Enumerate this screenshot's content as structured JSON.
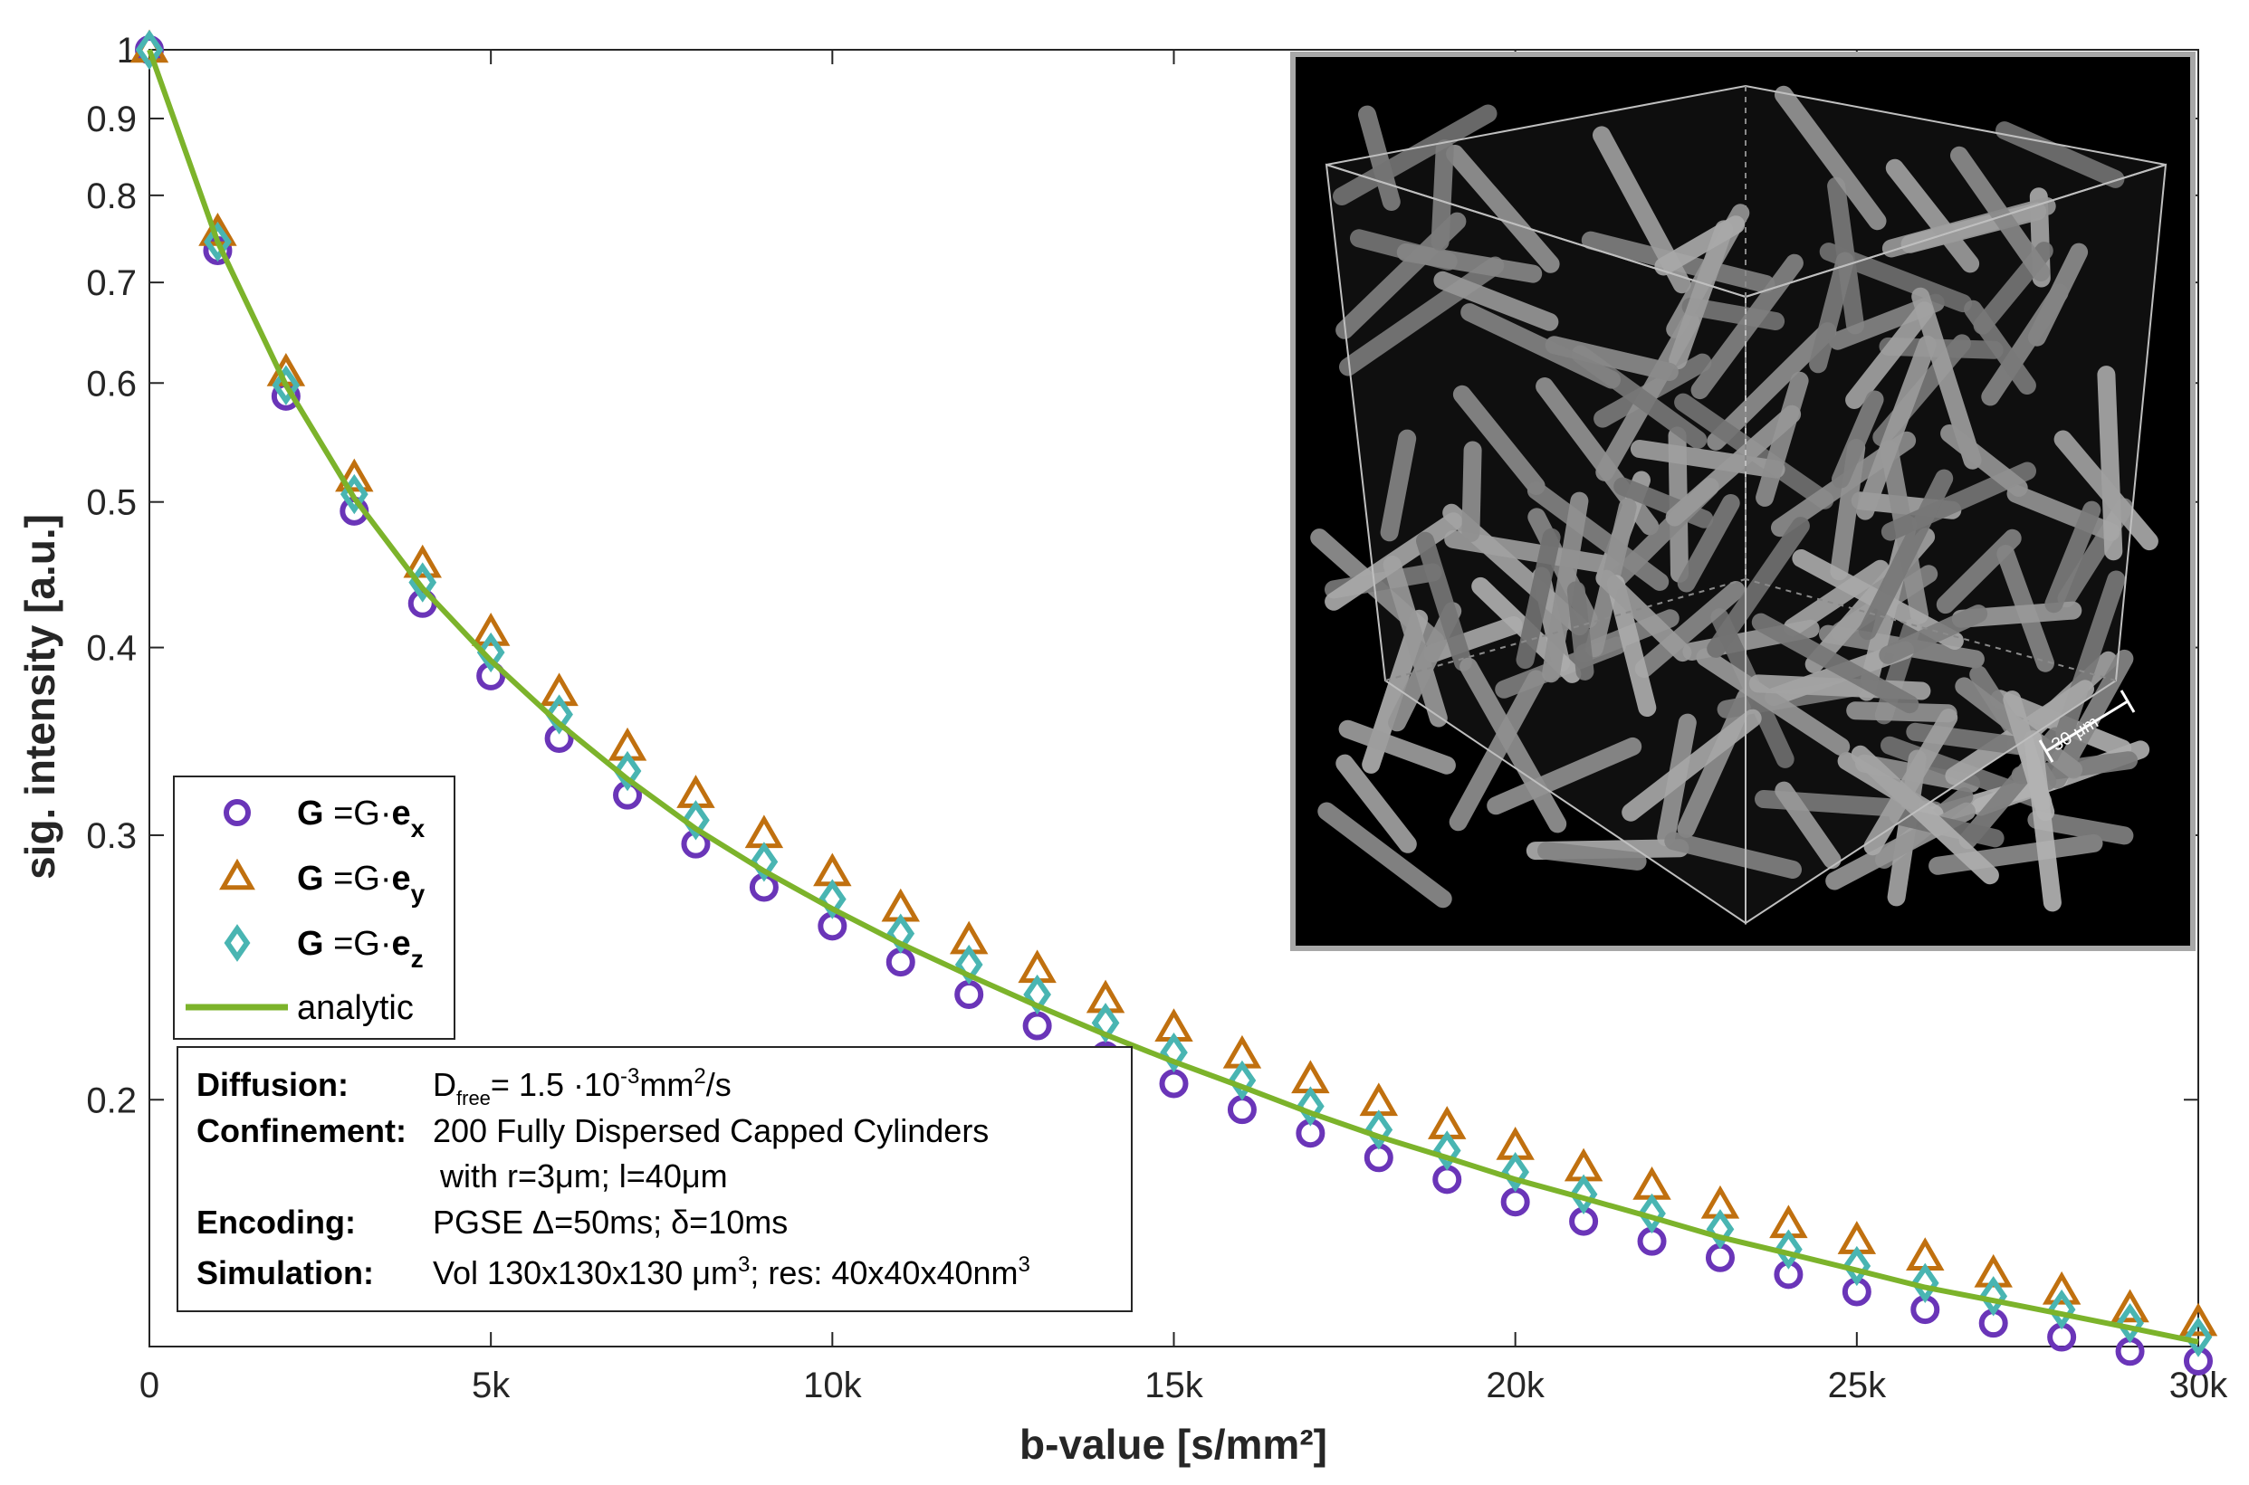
{
  "chart_data": {
    "type": "scatter",
    "xlabel": "b-value [s/mm²]",
    "ylabel": "sig. intensity [a.u.]",
    "xlim": [
      0,
      30000
    ],
    "ylim": [
      0.137,
      1.0
    ],
    "y_scale": "log",
    "grid": false,
    "legend_position": "bottom-left",
    "x_ticks": [
      0,
      5000,
      10000,
      15000,
      20000,
      25000,
      30000
    ],
    "x_tick_labels": [
      "0",
      "5k",
      "10k",
      "15k",
      "20k",
      "25k",
      "30k"
    ],
    "y_ticks": [
      0.2,
      0.3,
      0.4,
      0.5,
      0.6,
      0.7,
      0.8,
      0.9,
      1.0
    ],
    "y_tick_labels": [
      "0.2",
      "0.3",
      "0.4",
      "0.5",
      "0.6",
      "0.7",
      "0.8",
      "0.9",
      "1"
    ],
    "x": [
      0,
      1000,
      2000,
      3000,
      4000,
      5000,
      6000,
      7000,
      8000,
      9000,
      10000,
      11000,
      12000,
      13000,
      14000,
      15000,
      16000,
      17000,
      18000,
      19000,
      20000,
      21000,
      22000,
      23000,
      24000,
      25000,
      26000,
      27000,
      28000,
      29000,
      30000
    ],
    "series": [
      {
        "legend_bold": "G",
        "legend_mid": " =G·",
        "legend_vec": "e",
        "legend_sub": "x",
        "marker": "circle",
        "color": "#6a35b8",
        "values": [
          1.0,
          0.735,
          0.588,
          0.493,
          0.428,
          0.383,
          0.348,
          0.319,
          0.296,
          0.277,
          0.261,
          0.247,
          0.235,
          0.224,
          0.214,
          0.205,
          0.197,
          0.19,
          0.183,
          0.177,
          0.171,
          0.166,
          0.161,
          0.157,
          0.153,
          0.149,
          0.145,
          0.142,
          0.139,
          0.136,
          0.134
        ]
      },
      {
        "legend_bold": "G",
        "legend_mid": " =G·",
        "legend_vec": "e",
        "legend_sub": "y",
        "marker": "triangle",
        "color": "#c0700f",
        "values": [
          1.0,
          0.755,
          0.609,
          0.518,
          0.454,
          0.409,
          0.373,
          0.343,
          0.319,
          0.3,
          0.283,
          0.268,
          0.255,
          0.244,
          0.233,
          0.223,
          0.214,
          0.206,
          0.199,
          0.192,
          0.186,
          0.18,
          0.175,
          0.17,
          0.165,
          0.161,
          0.157,
          0.153,
          0.149,
          0.145,
          0.142
        ]
      },
      {
        "legend_bold": "G",
        "legend_mid": " =G·",
        "legend_vec": "e",
        "legend_sub": "z",
        "marker": "diamond",
        "color": "#49b5b2",
        "values": [
          1.0,
          0.745,
          0.598,
          0.506,
          0.442,
          0.397,
          0.361,
          0.331,
          0.307,
          0.288,
          0.272,
          0.258,
          0.246,
          0.235,
          0.225,
          0.215,
          0.206,
          0.198,
          0.191,
          0.185,
          0.179,
          0.173,
          0.168,
          0.164,
          0.159,
          0.155,
          0.151,
          0.148,
          0.145,
          0.142,
          0.139
        ]
      }
    ],
    "analytic": {
      "name": "analytic",
      "color": "#7cb32b",
      "values": [
        1.0,
        0.745,
        0.598,
        0.503,
        0.438,
        0.392,
        0.356,
        0.327,
        0.303,
        0.284,
        0.268,
        0.254,
        0.242,
        0.231,
        0.221,
        0.212,
        0.204,
        0.196,
        0.189,
        0.183,
        0.177,
        0.172,
        0.167,
        0.162,
        0.158,
        0.154,
        0.15,
        0.147,
        0.144,
        0.141,
        0.138
      ]
    },
    "info_box": [
      {
        "key": "Diffusion:",
        "text": "D",
        "sub": "free",
        "text2": "= 1.5 ·10",
        "sup": "-3",
        "text3": "mm",
        "sup2": "2",
        "text4": "/s"
      },
      {
        "key": "Confinement:",
        "text": "200 Fully Dispersed Capped Cylinders"
      },
      {
        "key": "",
        "text": "with r=3μm; l=40μm"
      },
      {
        "key": "Encoding:",
        "text": "PGSE  Δ=50ms; δ=10ms"
      },
      {
        "key": "Simulation:",
        "text": "Vol 130x130x130 μm",
        "sup": "3",
        "text2": "; res: 40x40x40nm",
        "sup2": "3"
      }
    ],
    "inset": {
      "scale_bar_label": "30 μm"
    }
  }
}
